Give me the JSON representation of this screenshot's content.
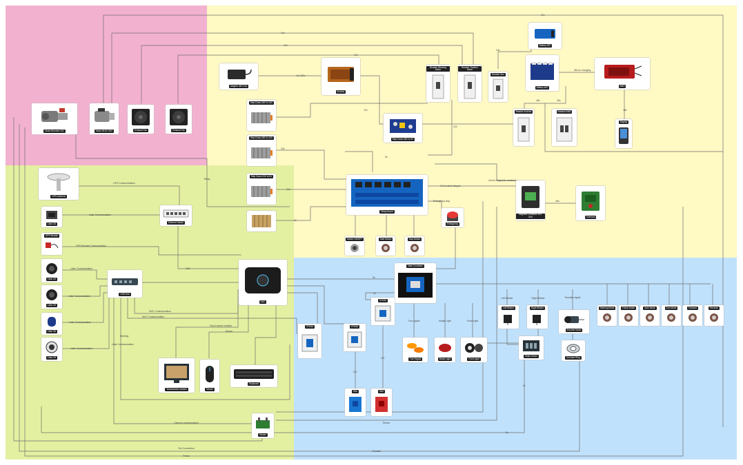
{
  "zone_colors": {
    "power": "#f3b1d0",
    "control": "#fff9c4",
    "compute": "#e4f0a1",
    "io": "#c0e1fb"
  },
  "components": {
    "motor_brushed": "Motor Brushed 24V",
    "motor_bldc": "Motor BLDC 60V",
    "exhaust_fan_1": "Exhaust Fan",
    "exhaust_fan_2": "Exhaust Fan",
    "adapter": "Adapter 48V-12A",
    "inverter": "Inverter",
    "step_down_1": "Step Down 48V to 24V",
    "step_down_2": "Step Down 48V to 12V",
    "step_down_3": "Step Down 24V to 5V",
    "step_down_4": "Step Down 12V to 5V",
    "step_down_mini": "Step Down 48V to 5V",
    "breaker_steering": "Breaker Steering Motor",
    "breaker_traction": "Breaker Traction Motor",
    "breaker_bus": "Breaker Bus",
    "breaker_inverter": "Breaker Inverter",
    "breaker_bms": "Breaker BMS",
    "battery_main": "Battery 48V",
    "battery_small": "Battery 48V",
    "bms": "BMS",
    "display": "Display",
    "relay_board": "Relay Board",
    "emergency": "Emergency",
    "contactor": "Magnetic contactor 48V-50A",
    "overload": "Overload",
    "switch_onoff": "Switch ON/OFF",
    "start_button": "Start Button",
    "stop_button": "Stop Button",
    "gps_antenna": "GPS Antenna",
    "lidar_1": "Lidar 3D",
    "gps_module": "GPS Module",
    "ethernet_switch": "Ethernet Switch",
    "lidar_2": "Lidar 2D",
    "lidar_3": "Lidar 2D",
    "lidar_4": "Lidar 3D",
    "lidar_5": "Lidar 2D",
    "usb_hub": "USB Hub",
    "nuc": "NUC",
    "main_controller": "Main Controller",
    "sub_controller_1": "STM32",
    "sub_controller_2": "STM32",
    "sub_controller_3": "STM32",
    "sub_controller_4": "STM32",
    "sensor_1": "IMU",
    "sensor_2": "IMU",
    "left_blinker": "Left Blinker",
    "right_blinker": "Right Blinker",
    "turn_signal": "Turn Signal",
    "brake_light": "Brake Light",
    "front_light": "Front Light",
    "motor_driver": "Motor Driver",
    "encoder_motor": "Encoder Motor",
    "encoder_ring": "Encoder Ring",
    "touchscreen": "Touchscreen monitor",
    "mouse": "Mouse",
    "keyboard": "Keyboard",
    "router": "Router",
    "btn_1": "Steering Mode",
    "btn_2": "Follow Mode",
    "btn_3": "Auto Mode",
    "btn_4": "Arm Mode",
    "btn_5": "Forward",
    "btn_6": "Reverse"
  },
  "wire_labels": {
    "l1": "24v",
    "l2": "12v",
    "l3": "12v",
    "l4": "24v",
    "l5": "24v",
    "l6": "12v",
    "l7": "AC 220v",
    "l8": "24v",
    "l9": "48v",
    "l10": "48v for charging",
    "l11": "48v",
    "l12": "48v",
    "l13": "24v",
    "l14": "24v",
    "l15": "5v",
    "l16": "5v",
    "l17": "24v for Magnetic contactor",
    "l18": "24v to drive stepper",
    "l19": "48v",
    "l20": "Emergency stop",
    "l21": "Lidar Communication",
    "l22": "GPS Communication",
    "l23": "GPS Module Communication",
    "l24": "Lidar Communication",
    "l25": "Lidar Communication",
    "l26": "Lidar Communication",
    "l27": "Lidar Communication",
    "l28": "NUC Communication",
    "l29": "NUC Communication",
    "l30": "Touch screen monitor",
    "l31": "Mouse",
    "l32": "Lidar Communication",
    "l33": "LAN",
    "l34": "Camera communication",
    "l35": "5v",
    "l36": "5v",
    "l37": "24v Connection",
    "l38": "Sensor",
    "l39": "Encoder",
    "l40": "Power",
    "l41": "5v",
    "l42": "Left Blinker",
    "l43": "Right Blinker",
    "l44": "Turn signal",
    "l45": "Brake Light",
    "l46": "Front Light",
    "l47": "Encoder signal",
    "l48": "I2C",
    "l49": "I2C",
    "l50": "5v",
    "l51": "Relay",
    "l52": "Steering"
  }
}
